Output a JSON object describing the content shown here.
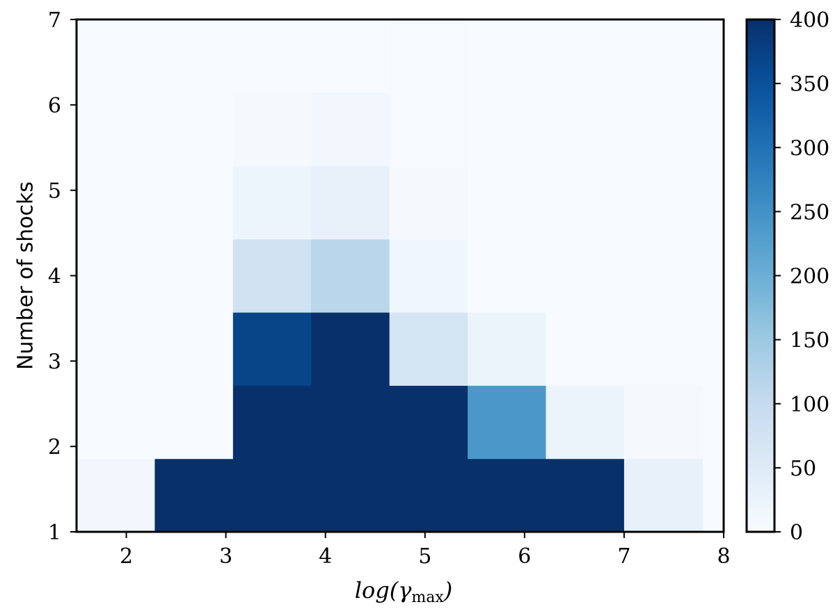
{
  "chart_data": {
    "type": "heatmap",
    "title": "",
    "xlabel_main": "log(",
    "xlabel_gamma": "γ",
    "xlabel_sub": "max",
    "xlabel_close": ")",
    "ylabel": "Number of shocks",
    "xlim": [
      1.5,
      8.0
    ],
    "ylim": [
      1.0,
      7.0
    ],
    "x_ticks": [
      2,
      3,
      4,
      5,
      6,
      7,
      8
    ],
    "x_tick_labels": [
      "2",
      "3",
      "4",
      "5",
      "6",
      "7",
      "8"
    ],
    "y_ticks": [
      1,
      2,
      3,
      4,
      5,
      6,
      7
    ],
    "y_tick_labels": [
      "1",
      "2",
      "3",
      "4",
      "5",
      "6",
      "7"
    ],
    "x_bin_edges": [
      1.5,
      2.2857,
      3.0714,
      3.8571,
      4.6429,
      5.4286,
      6.2143,
      7.0,
      7.7857
    ],
    "y_bin_edges": [
      1.0,
      1.8571,
      2.7143,
      3.5714,
      4.4286,
      5.2857,
      6.1429,
      7.0
    ],
    "counts": [
      [
        12,
        400,
        400,
        400,
        400,
        400,
        400,
        30
      ],
      [
        0,
        0,
        400,
        400,
        400,
        240,
        25,
        5
      ],
      [
        0,
        0,
        370,
        400,
        70,
        25,
        0,
        0
      ],
      [
        0,
        0,
        80,
        115,
        15,
        0,
        0,
        0
      ],
      [
        0,
        0,
        20,
        30,
        5,
        0,
        0,
        0
      ],
      [
        0,
        0,
        5,
        12,
        3,
        0,
        0,
        0
      ],
      [
        0,
        0,
        0,
        0,
        2,
        0,
        0,
        0
      ]
    ],
    "colorbar": {
      "range": [
        0,
        400
      ],
      "ticks": [
        0,
        50,
        100,
        150,
        200,
        250,
        300,
        350,
        400
      ],
      "tick_labels": [
        "0",
        "50",
        "100",
        "150",
        "200",
        "250",
        "300",
        "350",
        "400"
      ],
      "colormap": "Blues"
    }
  }
}
